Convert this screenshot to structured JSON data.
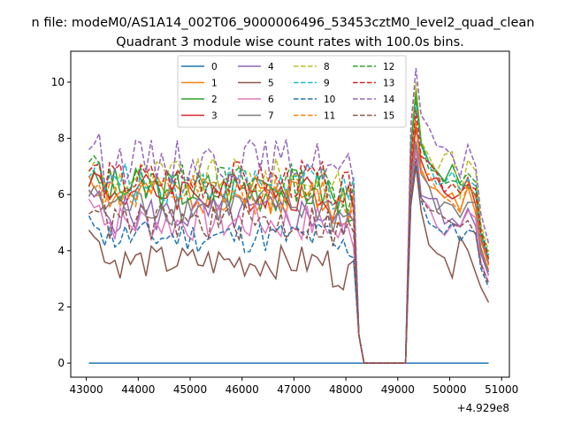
{
  "figure": {
    "suptitle": "n file: modeM0/AS1A14_002T06_9000006496_53453cztM0_level2_quad_clean",
    "title": "Quadrant 3 module wise count rates with 100.0s bins.",
    "x_offset_label": "+4.929e8"
  },
  "chart_data": {
    "type": "line",
    "title": "Quadrant 3 module wise count rates with 100.0s bins.",
    "xlabel": "",
    "ylabel": "",
    "xlim": [
      42700,
      51150
    ],
    "ylim": [
      -0.5,
      11.1
    ],
    "x_ticks": [
      43000,
      44000,
      45000,
      46000,
      47000,
      48000,
      49000,
      50000,
      51000
    ],
    "y_ticks": [
      0,
      2,
      4,
      6,
      8,
      10
    ],
    "x_offset": 492900000,
    "legend": {
      "placement": "upper-center",
      "columns": 4
    },
    "series": [
      {
        "name": "0",
        "color": "#1f77b4",
        "dash": "solid",
        "base": 0,
        "amp": 0,
        "seed": 1,
        "v1": 0,
        "v2": 0,
        "vpeak": 0,
        "vpost": [
          0,
          0,
          0,
          0,
          0,
          0,
          0,
          0
        ]
      },
      {
        "name": "1",
        "color": "#ff7f0e",
        "dash": "solid",
        "base": 6.0,
        "amp": 0.35,
        "seed": 2,
        "v1": 6.2,
        "v2": 6.0,
        "vpeak": 8.5,
        "vpost": [
          7.0,
          6.5,
          6.0,
          5.7,
          5.8,
          5.6,
          6.3,
          5.5
        ]
      },
      {
        "name": "2",
        "color": "#2ca02c",
        "dash": "solid",
        "base": 6.2,
        "amp": 0.4,
        "seed": 3,
        "v1": 6.5,
        "v2": 6.3,
        "vpeak": 9.7,
        "vpost": [
          7.5,
          7.0,
          6.6,
          6.4,
          6.7,
          6.0,
          6.6,
          6.2
        ]
      },
      {
        "name": "3",
        "color": "#d62728",
        "dash": "solid",
        "base": 6.1,
        "amp": 0.35,
        "seed": 4,
        "v1": 6.6,
        "v2": 6.2,
        "vpeak": 8.4,
        "vpost": [
          7.2,
          6.8,
          6.3,
          6.1,
          6.2,
          5.9,
          6.4,
          5.9
        ]
      },
      {
        "name": "4",
        "color": "#9467bd",
        "dash": "solid",
        "base": 5.3,
        "amp": 0.35,
        "seed": 5,
        "v1": 5.9,
        "v2": 5.3,
        "vpeak": 7.8,
        "vpost": [
          6.3,
          5.8,
          5.5,
          5.1,
          5.4,
          5.0,
          5.6,
          5.2
        ]
      },
      {
        "name": "5",
        "color": "#8c564b",
        "dash": "solid",
        "base": 3.6,
        "amp": 0.3,
        "seed": 6,
        "v1": 4.6,
        "v2": 3.8,
        "vpeak": 7.0,
        "vpost": [
          5.3,
          4.6,
          4.3,
          4.0,
          3.2,
          4.1,
          4.4,
          3.6
        ]
      },
      {
        "name": "6",
        "color": "#e377c2",
        "dash": "solid",
        "base": 5.0,
        "amp": 0.35,
        "seed": 7,
        "v1": 5.8,
        "v2": 5.0,
        "vpeak": 7.6,
        "vpost": [
          6.1,
          5.6,
          5.2,
          4.9,
          5.0,
          4.7,
          5.3,
          4.8
        ]
      },
      {
        "name": "7",
        "color": "#7f7f7f",
        "dash": "solid",
        "base": 5.6,
        "amp": 0.35,
        "seed": 8,
        "v1": 6.0,
        "v2": 5.6,
        "vpeak": 7.9,
        "vpost": [
          6.5,
          6.0,
          5.7,
          5.4,
          5.6,
          5.3,
          5.9,
          5.4
        ]
      },
      {
        "name": "8",
        "color": "#bcbd22",
        "dash": "dash",
        "base": 6.6,
        "amp": 0.35,
        "seed": 9,
        "v1": 7.0,
        "v2": 6.8,
        "vpeak": 10.0,
        "vpost": [
          8.0,
          7.5,
          7.0,
          7.2,
          7.4,
          6.2,
          6.9,
          6.6
        ]
      },
      {
        "name": "9",
        "color": "#17becf",
        "dash": "dash",
        "base": 6.4,
        "amp": 0.35,
        "seed": 10,
        "v1": 6.9,
        "v2": 6.5,
        "vpeak": 9.3,
        "vpost": [
          7.4,
          6.9,
          6.5,
          6.3,
          6.6,
          6.0,
          6.5,
          6.1
        ]
      },
      {
        "name": "10",
        "color": "#1f77b4",
        "dash": "dash",
        "base": 4.5,
        "amp": 0.3,
        "seed": 11,
        "v1": 5.0,
        "v2": 4.6,
        "vpeak": 7.2,
        "vpost": [
          5.8,
          5.2,
          4.9,
          4.6,
          4.7,
          4.4,
          5.0,
          4.5
        ]
      },
      {
        "name": "11",
        "color": "#ff7f0e",
        "dash": "dash",
        "base": 6.0,
        "amp": 0.35,
        "seed": 12,
        "v1": 6.5,
        "v2": 6.0,
        "vpeak": 8.8,
        "vpost": [
          7.1,
          6.6,
          6.2,
          6.0,
          6.1,
          5.7,
          6.2,
          5.8
        ]
      },
      {
        "name": "12",
        "color": "#2ca02c",
        "dash": "dash",
        "base": 6.4,
        "amp": 0.35,
        "seed": 13,
        "v1": 7.1,
        "v2": 6.4,
        "vpeak": 9.5,
        "vpost": [
          7.7,
          7.2,
          6.8,
          6.6,
          6.8,
          6.2,
          6.8,
          6.4
        ]
      },
      {
        "name": "13",
        "color": "#d62728",
        "dash": "dash",
        "base": 6.5,
        "amp": 0.35,
        "seed": 14,
        "v1": 6.9,
        "v2": 6.6,
        "vpeak": 9.0,
        "vpost": [
          7.6,
          7.1,
          6.7,
          6.4,
          6.6,
          6.1,
          6.7,
          6.2
        ]
      },
      {
        "name": "14",
        "color": "#9467bd",
        "dash": "dash",
        "base": 7.2,
        "amp": 0.4,
        "seed": 15,
        "v1": 7.8,
        "v2": 7.4,
        "vpeak": 10.5,
        "vpost": [
          8.6,
          8.0,
          7.6,
          7.3,
          7.5,
          6.9,
          7.6,
          7.1
        ]
      },
      {
        "name": "15",
        "color": "#8c564b",
        "dash": "dash",
        "base": 5.0,
        "amp": 0.35,
        "seed": 16,
        "v1": 5.6,
        "v2": 5.1,
        "vpeak": 7.3,
        "vpost": [
          6.0,
          5.5,
          5.2,
          4.9,
          5.0,
          4.6,
          5.2,
          4.7
        ]
      }
    ]
  }
}
